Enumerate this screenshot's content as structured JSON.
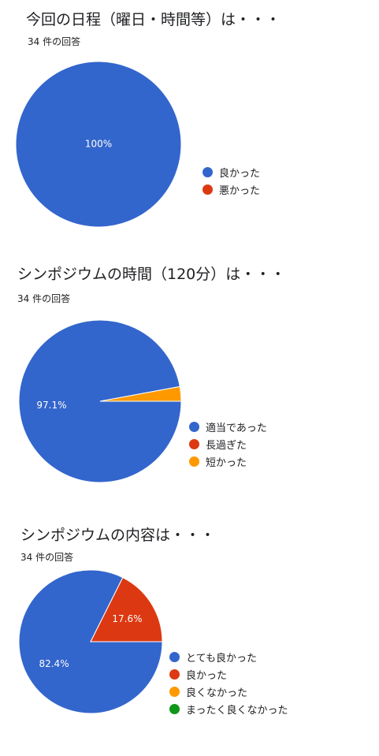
{
  "charts": [
    {
      "title": "今回の日程（曜日・時間等）は・・・",
      "count": "34 件の回答"
    },
    {
      "title": "シンポジウムの時間（120分）は・・・",
      "count": "34 件の回答"
    },
    {
      "title": "シンポジウムの内容は・・・",
      "count": "34 件の回答"
    }
  ],
  "chart_data": [
    {
      "type": "pie",
      "title": "今回の日程（曜日・時間等）は・・・",
      "categories": [
        "良かった",
        "悪かった"
      ],
      "values": [
        100,
        0
      ],
      "colors": [
        "#3366cc",
        "#dc3912"
      ],
      "data_labels": [
        "100%",
        ""
      ],
      "legend": "right"
    },
    {
      "type": "pie",
      "title": "シンポジウムの時間（120分）は・・・",
      "categories": [
        "適当であった",
        "長過ぎた",
        "短かった"
      ],
      "values": [
        97.1,
        0,
        2.9
      ],
      "colors": [
        "#3366cc",
        "#dc3912",
        "#ff9900"
      ],
      "data_labels": [
        "97.1%",
        "",
        ""
      ],
      "legend": "right"
    },
    {
      "type": "pie",
      "title": "シンポジウムの内容は・・・",
      "categories": [
        "とても良かった",
        "良かった",
        "良くなかった",
        "まったく良くなかった"
      ],
      "values": [
        82.4,
        17.6,
        0,
        0
      ],
      "colors": [
        "#3366cc",
        "#dc3912",
        "#ff9900",
        "#109618"
      ],
      "data_labels": [
        "82.4%",
        "17.6%",
        "",
        ""
      ],
      "legend": "right"
    }
  ]
}
